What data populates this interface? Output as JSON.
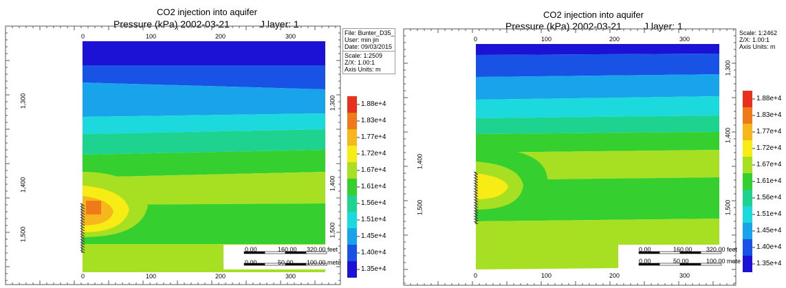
{
  "chart_data": [
    {
      "type": "heatmap",
      "title": "CO2 injection into aquifer",
      "subtitle": "Pressure (kPa) 2002-03-21",
      "layer_label": "J layer: 1",
      "info": [
        "File: Bunter_D35_",
        "User: min jin",
        "Date: 09/03/2015"
      ],
      "scale_info": [
        "Scale: 1:2509",
        "Z/X: 1.00:1",
        "Axis Units: m"
      ],
      "x_ticks": [
        "0",
        "100",
        "200",
        "300"
      ],
      "y_ticks": [
        "1,300",
        "1,400",
        "1,500"
      ],
      "right_y_ticks": [
        "1,300",
        "1,400",
        "1,500"
      ],
      "legend": [
        "1.88e+4",
        "1.83e+4",
        "1.77e+4",
        "1.72e+4",
        "1.67e+4",
        "1.61e+4",
        "1.56e+4",
        "1.51e+4",
        "1.45e+4",
        "1.40e+4",
        "1.35e+4"
      ],
      "scalebar": {
        "feet": [
          "0.00",
          "160.00",
          "320.00 feet"
        ],
        "meters": [
          "0.00",
          "50.00",
          "100.00 mete"
        ]
      }
    },
    {
      "type": "heatmap",
      "title": "CO2 injection into aquifer",
      "subtitle": "Pressure (kPa) 2002-03-21",
      "layer_label": "J layer: 1",
      "info": [],
      "scale_info": [
        "Scale: 1:2462",
        "Z/X: 1.00:1",
        "Axis Units: m"
      ],
      "x_ticks": [
        "0",
        "100",
        "200",
        "300"
      ],
      "y_ticks": [
        "1,400",
        "1,500"
      ],
      "right_y_ticks": [
        "1,300",
        "1,400",
        "1,500"
      ],
      "legend": [
        "1.88e+4",
        "1.83e+4",
        "1.77e+4",
        "1.72e+4",
        "1.67e+4",
        "1.61e+4",
        "1.56e+4",
        "1.51e+4",
        "1.45e+4",
        "1.40e+4",
        "1.35e+4"
      ],
      "scalebar": {
        "feet": [
          "0.00",
          "160.00",
          "320.00 feet"
        ],
        "meters": [
          "0.00",
          "50.00",
          "100.00 mete"
        ]
      }
    }
  ],
  "colors": {
    "c1.88": "#e8301c",
    "c1.83": "#f07a1a",
    "c1.77": "#f6b71c",
    "c1.72": "#f7ec14",
    "c1.67": "#a7df22",
    "c1.61": "#36cf30",
    "c1.56": "#1dd38f",
    "c1.51": "#1bd9dc",
    "c1.45": "#19a3ea",
    "c1.40": "#1853e6",
    "c1.35": "#1c12d6"
  }
}
